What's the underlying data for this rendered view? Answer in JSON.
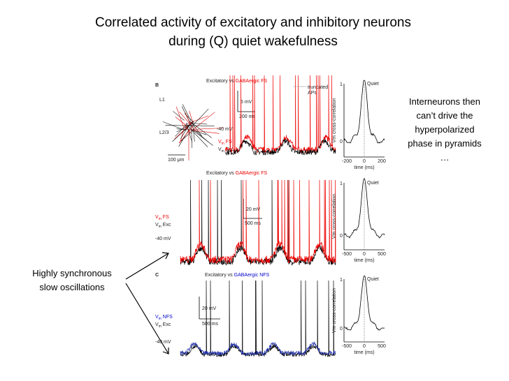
{
  "title": [
    "Correlated activity of excitatory and inhibitory neurons",
    "during (Q) quiet wakefulness"
  ],
  "annotations": {
    "right": [
      "Interneurons then",
      "can’t drive the",
      "hyperpolarized",
      "phase in pyramids",
      "…"
    ],
    "left": [
      "Highly synchronous",
      "slow oscillations"
    ]
  },
  "figure": {
    "panel_b": {
      "label": "B",
      "heading": [
        "Excitatory vs ",
        "GABAergic FS"
      ],
      "truncated": [
        "truncated",
        "APs"
      ],
      "layers": [
        "L1",
        "L2/3"
      ],
      "scale_um": "100 μm",
      "scale_mv": "5 mV",
      "scale_ms": "200 ms",
      "level": "-40 mV",
      "legend": [
        [
          "V",
          "m",
          " FS"
        ],
        [
          "V",
          "m",
          " Exc"
        ]
      ],
      "cc": {
        "title": "Quiet",
        "ylabel": "Vm cross-correlation",
        "yticks": [
          "1",
          "0"
        ],
        "xticks": [
          "-200",
          "0",
          "200"
        ],
        "xlabel": "time (ms)"
      }
    },
    "panel_b2": {
      "heading": [
        "Excitatory vs ",
        "GABAergic FS"
      ],
      "scale_mv": "20 mV",
      "scale_ms": "500 ms",
      "level": "-40 mV",
      "legend": [
        [
          "V",
          "m",
          " FS"
        ],
        [
          "V",
          "m",
          " Exc"
        ]
      ],
      "cc": {
        "title": "Quiet",
        "ylabel": "Vm cross-correlation",
        "yticks": [
          "1",
          "0"
        ],
        "xticks": [
          "-500",
          "0",
          "500"
        ],
        "xlabel": "time (ms)"
      }
    },
    "panel_c": {
      "label": "C",
      "heading": [
        "Excitatory vs ",
        "GABAergic NFS"
      ],
      "scale_mv": "20 mV",
      "scale_ms": "500 ms",
      "level": "-40 mV",
      "legend": [
        [
          "V",
          "m",
          " NFS"
        ],
        [
          "V",
          "m",
          " Exc"
        ]
      ],
      "cc": {
        "title": "Quiet",
        "ylabel": "Vm cross-correlation",
        "yticks": [
          "1",
          "0"
        ],
        "xticks": [
          "-500",
          "0",
          "500"
        ],
        "xlabel": "time (ms)"
      }
    }
  }
}
